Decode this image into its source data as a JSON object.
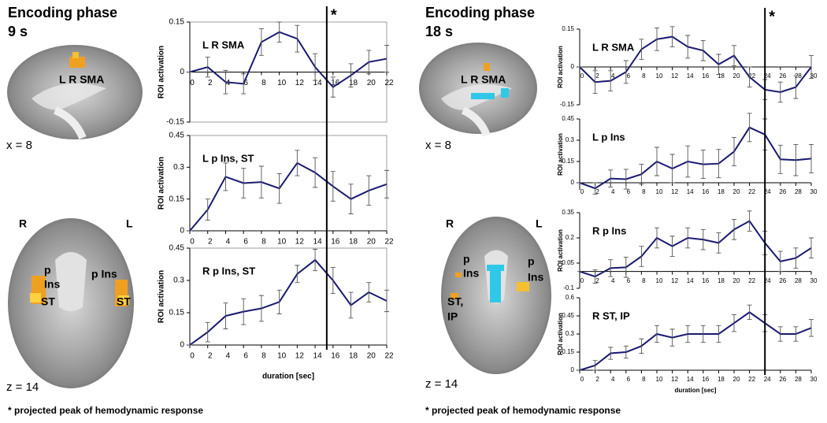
{
  "panels": [
    {
      "title": "Encoding phase",
      "subtitle": "9 s",
      "footnote": "* projected peak of hemodynamic response",
      "peak": {
        "x": 15.3,
        "label": "*"
      },
      "sagittal": {
        "coord": "x = 8",
        "labels": [
          "L R SMA"
        ]
      },
      "axial": {
        "coord": "z = 14",
        "side_left": "R",
        "side_right": "L",
        "labels": [
          "p",
          "Ins",
          "p Ins",
          "ST",
          "ST"
        ]
      }
    },
    {
      "title": "Encoding phase",
      "subtitle": "18 s",
      "footnote": "* projected peak of hemodynamic response",
      "peak": {
        "x": 24,
        "label": "*"
      },
      "sagittal": {
        "coord": "x = 8",
        "labels": [
          "L R SMA"
        ]
      },
      "axial": {
        "coord": "z = 14",
        "side_left": "R",
        "side_right": "L",
        "labels": [
          "p",
          "Ins",
          "p",
          "Ins",
          "ST,",
          "IP"
        ]
      }
    }
  ],
  "chart_data": [
    {
      "type": "line",
      "title": "L R SMA",
      "ylabel": "ROI activation",
      "color": "#1a1a72",
      "x": [
        0,
        2,
        4,
        6,
        8,
        10,
        12,
        14,
        16,
        18,
        20,
        22
      ],
      "xlim": [
        0,
        22
      ],
      "xticks": [
        0,
        2,
        4,
        6,
        8,
        10,
        12,
        14,
        16,
        18,
        20,
        22
      ],
      "values": [
        0,
        0.015,
        -0.03,
        -0.035,
        0.09,
        0.12,
        0.1,
        0.015,
        -0.045,
        -0.01,
        0.03,
        0.04
      ],
      "errors": [
        0,
        0.03,
        0.035,
        0.03,
        0.04,
        0.03,
        0.04,
        0.04,
        0.03,
        0.035,
        0.035,
        0.04
      ],
      "ylim": [
        -0.15,
        0.15
      ],
      "yticks": [
        -0.15,
        0,
        0.15
      ]
    },
    {
      "type": "line",
      "title": "L p Ins, ST",
      "ylabel": "ROI activation",
      "color": "#1a1a72",
      "x": [
        0,
        2,
        4,
        6,
        8,
        10,
        12,
        14,
        16,
        18,
        20,
        22
      ],
      "xlim": [
        0,
        22
      ],
      "xticks": [
        0,
        2,
        4,
        6,
        8,
        10,
        12,
        14,
        16,
        18,
        20,
        22
      ],
      "values": [
        0,
        0.1,
        0.255,
        0.225,
        0.23,
        0.2,
        0.32,
        0.275,
        0.21,
        0.15,
        0.19,
        0.22
      ],
      "errors": [
        0,
        0.05,
        0.065,
        0.07,
        0.075,
        0.07,
        0.06,
        0.07,
        0.07,
        0.07,
        0.07,
        0.065
      ],
      "ylim": [
        0,
        0.45
      ],
      "yticks": [
        0,
        0.15,
        0.3,
        0.45
      ]
    },
    {
      "type": "line",
      "title": "R p Ins, ST",
      "ylabel": "ROI activation",
      "xlabel": "duration [sec]",
      "color": "#1a1a72",
      "x": [
        0,
        2,
        4,
        6,
        8,
        10,
        12,
        14,
        16,
        18,
        20,
        22
      ],
      "xlim": [
        0,
        22
      ],
      "xticks": [
        0,
        2,
        4,
        6,
        8,
        10,
        12,
        14,
        16,
        18,
        20,
        22
      ],
      "values": [
        0,
        0.06,
        0.135,
        0.155,
        0.17,
        0.2,
        0.33,
        0.395,
        0.3,
        0.185,
        0.245,
        0.205
      ],
      "errors": [
        0,
        0.045,
        0.06,
        0.06,
        0.06,
        0.055,
        0.04,
        0.05,
        0.06,
        0.06,
        0.045,
        0.05
      ],
      "ylim": [
        0,
        0.45
      ],
      "yticks": [
        0,
        0.15,
        0.3,
        0.45
      ]
    },
    {
      "type": "line",
      "title": "L R SMA",
      "ylabel": "ROI activation",
      "color": "#1a1a72",
      "x": [
        0,
        2,
        4,
        6,
        8,
        10,
        12,
        14,
        16,
        18,
        20,
        22,
        24,
        26,
        28,
        30
      ],
      "xlim": [
        0,
        30
      ],
      "xticks": [
        0,
        2,
        4,
        6,
        8,
        10,
        12,
        14,
        16,
        18,
        20,
        22,
        24,
        26,
        28,
        30
      ],
      "values": [
        0,
        -0.06,
        -0.055,
        -0.02,
        0.07,
        0.11,
        0.12,
        0.08,
        0.065,
        0.01,
        0.045,
        -0.04,
        -0.09,
        -0.1,
        -0.08,
        0
      ],
      "errors": [
        0,
        0.045,
        0.04,
        0.045,
        0.04,
        0.045,
        0.04,
        0.045,
        0.04,
        0.04,
        0.04,
        0.04,
        0.04,
        0.04,
        0.045,
        0.045
      ],
      "ylim": [
        -0.15,
        0.15
      ],
      "yticks": [
        -0.15,
        0,
        0.15
      ]
    },
    {
      "type": "line",
      "title": "L p Ins",
      "ylabel": "ROI activation",
      "color": "#1a1a72",
      "x": [
        0,
        2,
        4,
        6,
        8,
        10,
        12,
        14,
        16,
        18,
        20,
        22,
        24,
        26,
        28,
        30
      ],
      "xlim": [
        0,
        30
      ],
      "xticks": [
        0,
        2,
        4,
        6,
        8,
        10,
        12,
        14,
        16,
        18,
        20,
        22,
        24,
        26,
        28,
        30
      ],
      "values": [
        0,
        -0.04,
        0.03,
        0.025,
        0.06,
        0.15,
        0.1,
        0.15,
        0.13,
        0.135,
        0.22,
        0.39,
        0.34,
        0.165,
        0.16,
        0.17
      ],
      "errors": [
        0,
        0.04,
        0.06,
        0.07,
        0.07,
        0.1,
        0.1,
        0.11,
        0.1,
        0.1,
        0.1,
        0.1,
        0.11,
        0.1,
        0.11,
        0.1
      ],
      "ylim": [
        -0.05,
        0.45
      ],
      "yticks": [
        0,
        0.15,
        0.3,
        0.45
      ]
    },
    {
      "type": "line",
      "title": "R p Ins",
      "ylabel": "ROI activation",
      "color": "#1a1a72",
      "x": [
        0,
        2,
        4,
        6,
        8,
        10,
        12,
        14,
        16,
        18,
        20,
        22,
        24,
        26,
        28,
        30
      ],
      "xlim": [
        0,
        30
      ],
      "xticks": [
        0,
        2,
        4,
        6,
        8,
        10,
        12,
        14,
        16,
        18,
        20,
        22,
        24,
        26,
        28,
        30
      ],
      "values": [
        0,
        -0.03,
        0.02,
        0.025,
        0.09,
        0.2,
        0.15,
        0.2,
        0.19,
        0.17,
        0.25,
        0.3,
        0.17,
        0.06,
        0.08,
        0.14
      ],
      "errors": [
        0,
        0.04,
        0.05,
        0.06,
        0.06,
        0.06,
        0.06,
        0.06,
        0.06,
        0.06,
        0.06,
        0.06,
        0.07,
        0.06,
        0.06,
        0.06
      ],
      "ylim": [
        -0.1,
        0.35
      ],
      "yticks": [
        -0.1,
        0.05,
        0.2,
        0.35
      ]
    },
    {
      "type": "line",
      "title": "R ST, IP",
      "ylabel": "ROI activation",
      "xlabel": "duration [sec]",
      "color": "#1a1a72",
      "x": [
        0,
        2,
        4,
        6,
        8,
        10,
        12,
        14,
        16,
        18,
        20,
        22,
        24,
        26,
        28,
        30
      ],
      "xlim": [
        0,
        30
      ],
      "xticks": [
        0,
        2,
        4,
        6,
        8,
        10,
        12,
        14,
        16,
        18,
        20,
        22,
        24,
        26,
        28,
        30
      ],
      "values": [
        0,
        0.04,
        0.14,
        0.15,
        0.2,
        0.3,
        0.27,
        0.3,
        0.3,
        0.3,
        0.39,
        0.48,
        0.39,
        0.3,
        0.3,
        0.35
      ],
      "errors": [
        0,
        0.04,
        0.05,
        0.05,
        0.06,
        0.07,
        0.07,
        0.07,
        0.07,
        0.07,
        0.07,
        0.06,
        0.07,
        0.06,
        0.06,
        0.07
      ],
      "ylim": [
        0,
        0.6
      ],
      "yticks": [
        0,
        0.15,
        0.3,
        0.45,
        0.6
      ]
    }
  ]
}
